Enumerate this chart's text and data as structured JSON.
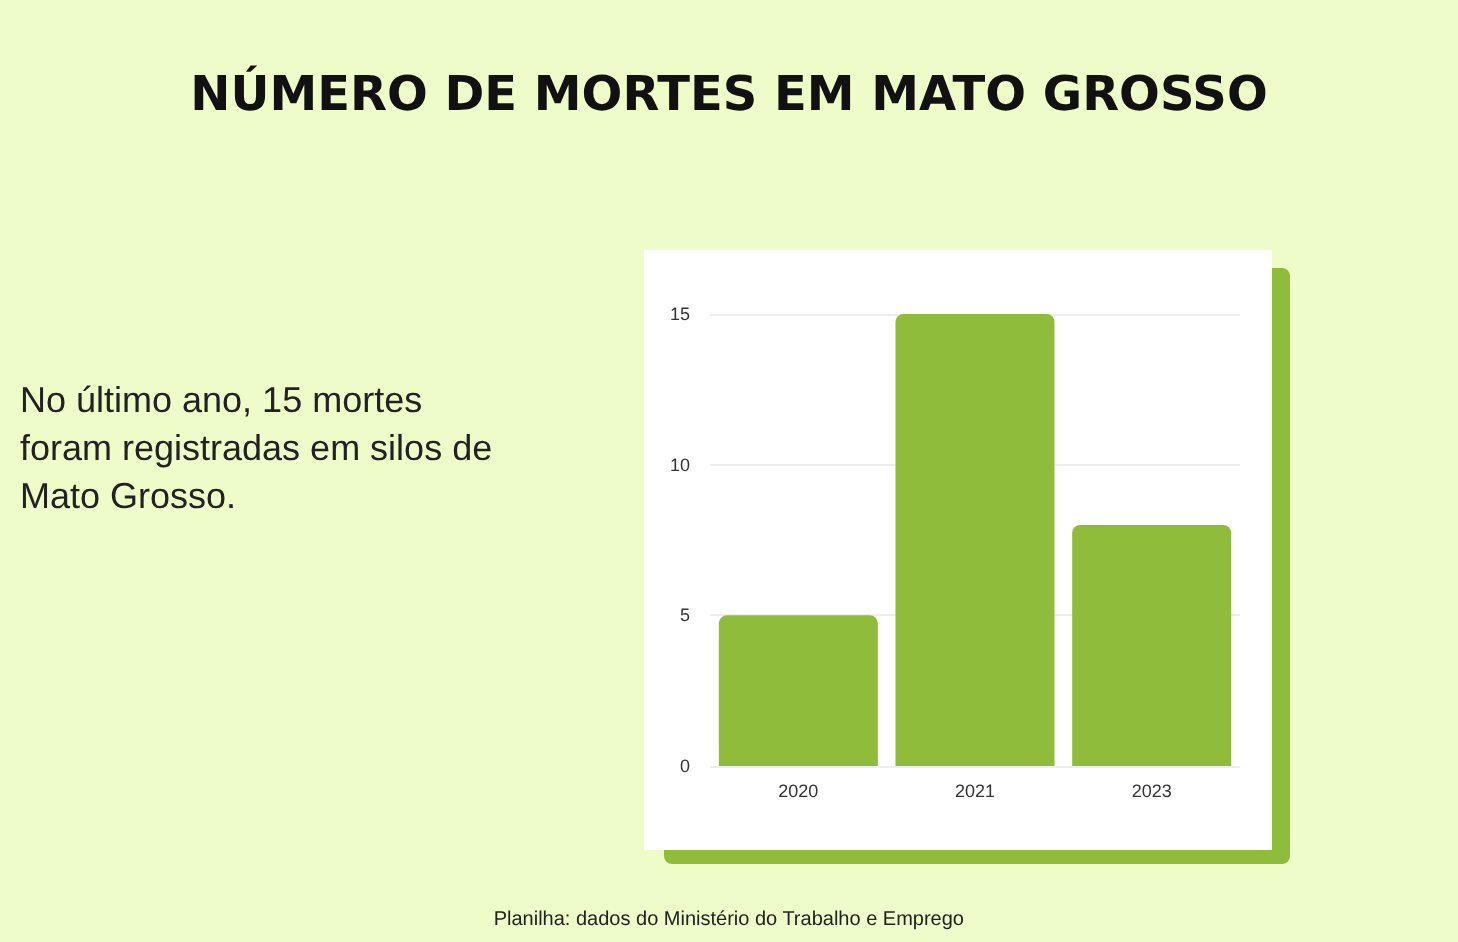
{
  "chart_data": {
    "type": "bar",
    "title": "NÚMERO DE MORTES EM MATO GROSSO",
    "categories": [
      "2020",
      "2021",
      "2023"
    ],
    "values": [
      5,
      15,
      8
    ],
    "color": "#8fbc3b",
    "ylim": [
      0,
      15
    ],
    "yticks": [
      0,
      5,
      10,
      15
    ],
    "grid": "y",
    "annotations": [
      "No último ano, 15 mortes foram registradas em silos de Mato Grosso.",
      "Planilha: dados do Ministério do Trabalho e Emprego"
    ]
  }
}
